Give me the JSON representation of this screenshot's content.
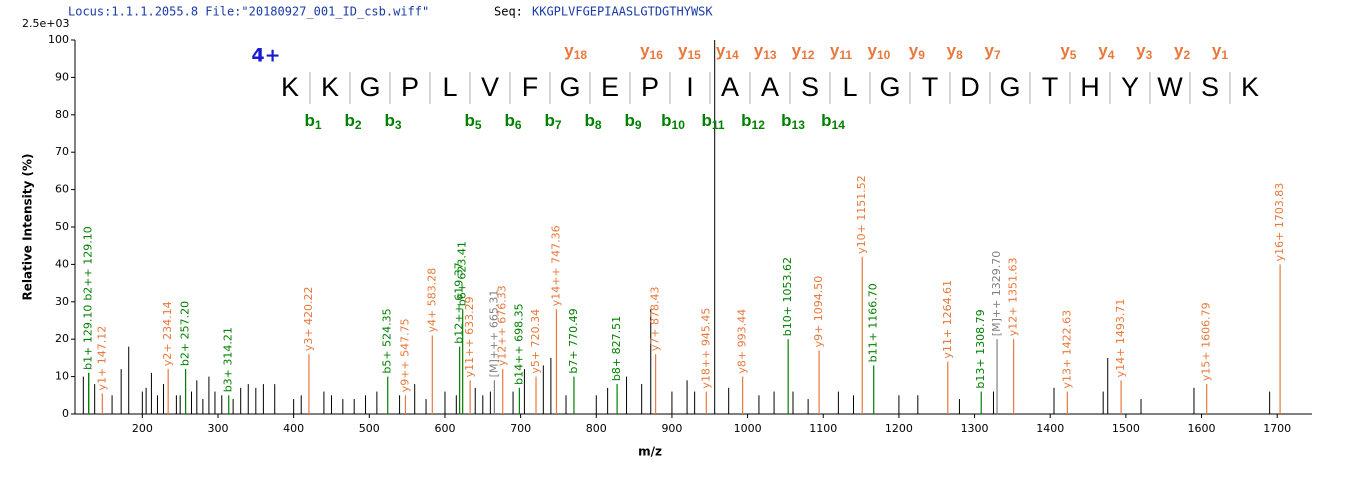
{
  "chart_data": {
    "type": "stem",
    "header": "Locus:1.1.1.2055.8 File:\"20180927_001_ID_csb.wiff\"",
    "seq_label": "Seq:",
    "seq": "KKGPLVFGEPIAASLGTDGTHYWSK",
    "scale_label": "2.5e+03",
    "ylabel": "Relative   Intensity (%)",
    "xlabel": "m/z",
    "xlim": [
      111,
      1746
    ],
    "ylim": [
      0,
      100
    ],
    "xticks": [
      200,
      300,
      400,
      500,
      600,
      700,
      800,
      900,
      1000,
      1100,
      1200,
      1300,
      1400,
      1500,
      1600,
      1700
    ],
    "yticks": [
      0,
      10,
      20,
      30,
      40,
      50,
      60,
      70,
      80,
      90,
      100
    ],
    "charge": "4+",
    "residues": [
      "K",
      "K",
      "G",
      "P",
      "L",
      "V",
      "F",
      "G",
      "E",
      "P",
      "I",
      "A",
      "A",
      "S",
      "L",
      "G",
      "T",
      "D",
      "G",
      "T",
      "H",
      "Y",
      "W",
      "S",
      "K"
    ],
    "y_ions": [
      {
        "ion": "y",
        "n": 18
      },
      {
        "ion": "y",
        "n": 16
      },
      {
        "ion": "y",
        "n": 15
      },
      {
        "ion": "y",
        "n": 14
      },
      {
        "ion": "y",
        "n": 13
      },
      {
        "ion": "y",
        "n": 12
      },
      {
        "ion": "y",
        "n": 11
      },
      {
        "ion": "y",
        "n": 10
      },
      {
        "ion": "y",
        "n": 9
      },
      {
        "ion": "y",
        "n": 8
      },
      {
        "ion": "y",
        "n": 7
      },
      {
        "ion": "y",
        "n": 5
      },
      {
        "ion": "y",
        "n": 4
      },
      {
        "ion": "y",
        "n": 3
      },
      {
        "ion": "y",
        "n": 2
      },
      {
        "ion": "y",
        "n": 1
      }
    ],
    "b_ions": [
      {
        "ion": "b",
        "n": 1
      },
      {
        "ion": "b",
        "n": 2
      },
      {
        "ion": "b",
        "n": 3
      },
      {
        "ion": "b",
        "n": 5
      },
      {
        "ion": "b",
        "n": 6
      },
      {
        "ion": "b",
        "n": 7
      },
      {
        "ion": "b",
        "n": 8
      },
      {
        "ion": "b",
        "n": 9
      },
      {
        "ion": "b",
        "n": 10
      },
      {
        "ion": "b",
        "n": 11
      },
      {
        "ion": "b",
        "n": 12
      },
      {
        "ion": "b",
        "n": 13
      },
      {
        "ion": "b",
        "n": 14
      }
    ],
    "y_color": "#e8783c",
    "b_color": "#008000",
    "peaks": {
      "color": "#000000",
      "x": [
        122,
        137,
        160,
        172,
        182,
        200,
        205,
        212,
        220,
        228,
        245,
        250,
        265,
        272,
        280,
        288,
        296,
        305,
        320,
        330,
        340,
        350,
        360,
        375,
        400,
        410,
        440,
        450,
        465,
        480,
        495,
        510,
        540,
        560,
        575,
        600,
        615,
        640,
        650,
        660,
        690,
        705,
        730,
        740,
        760,
        800,
        815,
        840,
        860,
        872,
        900,
        920,
        930,
        956.5,
        975,
        1015,
        1035,
        1060,
        1080,
        1120,
        1140,
        1200,
        1225,
        1280,
        1325,
        1405,
        1470,
        1476,
        1520,
        1590,
        1690
      ],
      "values": [
        10,
        8,
        5,
        12,
        18,
        6,
        7,
        11,
        5,
        8,
        5,
        5,
        6,
        9,
        4,
        10,
        6,
        5,
        4,
        7,
        8,
        7,
        8,
        8,
        4,
        5,
        6,
        5,
        4,
        4,
        5,
        6,
        5,
        8,
        4,
        6,
        5,
        7,
        5,
        6,
        6,
        12,
        13,
        15,
        5,
        5,
        7,
        10,
        8,
        28,
        6,
        9,
        6,
        100,
        7,
        5,
        6,
        6,
        4,
        6,
        5,
        5,
        5,
        4,
        6,
        7,
        6,
        15,
        4,
        7,
        6
      ]
    },
    "annotated": [
      {
        "color": "#008000",
        "x": [
          129.1,
          129.1,
          257.2,
          314.21,
          524.35,
          619.37,
          623.41,
          698.35,
          770.49,
          827.51,
          1053.62,
          1166.7,
          1308.79
        ],
        "values": [
          11,
          11,
          12,
          5,
          10,
          18,
          28,
          7,
          10,
          8,
          20,
          13,
          6
        ],
        "labels": [
          "b1+ 129.10",
          "b2++ 129.10",
          "b2+ 257.20",
          "b3+ 314.21",
          "b5+ 524.35",
          "b12++ 619.37",
          "b6+ 623.41",
          "b14++ 698.35",
          "b7+ 770.49",
          "b8+ 827.51",
          "b10+ 1053.62",
          "b11+ 1166.70",
          "b13+ 1308.79"
        ]
      },
      {
        "color": "#e8783c",
        "x": [
          147.12,
          234.14,
          420.22,
          547.75,
          583.28,
          633.29,
          676.33,
          720.34,
          747.36,
          878.43,
          945.45,
          993.44,
          1094.5,
          1151.52,
          1264.61,
          1351.63,
          1422.63,
          1493.71,
          1606.79,
          1703.83
        ],
        "values": [
          5.5,
          12,
          16,
          5,
          21,
          9,
          12,
          10,
          28,
          16,
          6,
          10,
          17,
          42,
          14,
          20,
          6,
          9,
          8,
          40
        ],
        "labels": [
          "y1+ 147.12",
          "y2+ 234.14",
          "y3+ 420.22",
          "y9++ 547.75",
          "y4+ 583.28",
          "y11++ 633.29",
          "y12++ 676.33",
          "y5+ 720.34",
          "y14++ 747.36",
          "y7+ 878.43",
          "y18++ 945.45",
          "y8+ 993.44",
          "y9+ 1094.50",
          "y10+ 1151.52",
          "y11+ 1264.61",
          "y12+ 1351.63",
          "y13+ 1422.63",
          "y14+ 1493.71",
          "y15+ 1606.79",
          "y16+ 1703.83"
        ]
      },
      {
        "color": "#808080",
        "x": [
          665.31,
          1329.7
        ],
        "values": [
          9,
          20
        ],
        "labels": [
          "[M]+++ 665.31",
          "[M]++ 1329.70"
        ]
      }
    ]
  }
}
